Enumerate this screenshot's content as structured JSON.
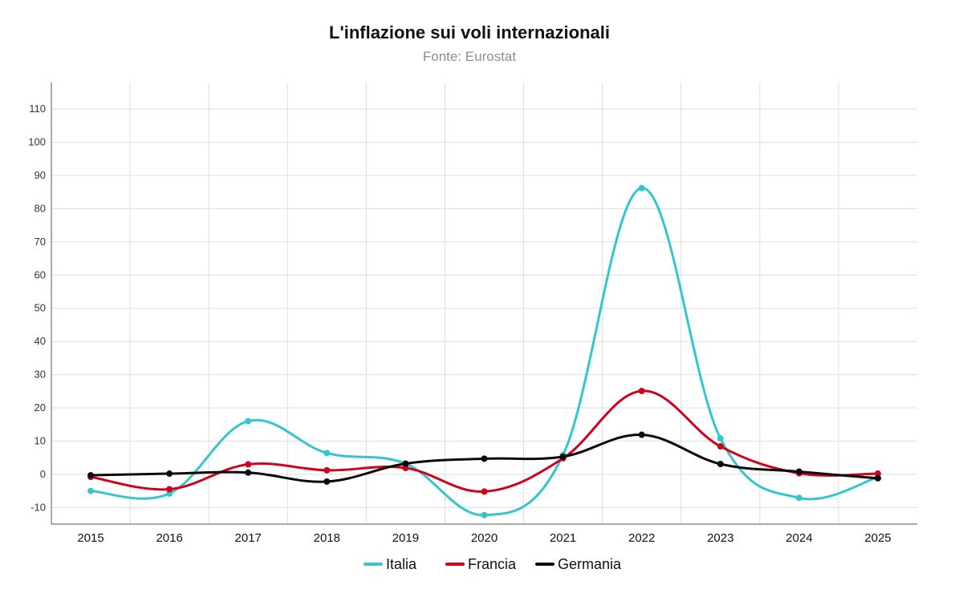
{
  "chart_data": {
    "type": "line",
    "title": "L'inflazione sui voli internazionali",
    "subtitle": "Fonte: Eurostat",
    "xlabel": "",
    "ylabel": "",
    "categories": [
      "2015",
      "2016",
      "2017",
      "2018",
      "2019",
      "2020",
      "2021",
      "2022",
      "2023",
      "2024",
      "2025"
    ],
    "ylim": [
      -15,
      118
    ],
    "yticks": [
      -10,
      0,
      10,
      20,
      30,
      40,
      50,
      60,
      70,
      80,
      90,
      100,
      110
    ],
    "grid": true,
    "legend_position": "bottom",
    "series": [
      {
        "name": "Italia",
        "color": "#35c6cd",
        "values": [
          -5,
          -5.8,
          16,
          6.4,
          3.2,
          -12.3,
          5.8,
          86.2,
          10.8,
          -7.1,
          -0.9
        ]
      },
      {
        "name": "Francia",
        "color": "#d0021b",
        "values": [
          -0.8,
          -4.5,
          3,
          1.2,
          1.9,
          -5.2,
          4.8,
          25.1,
          8.4,
          0.3,
          0.2
        ]
      },
      {
        "name": "Germania",
        "color": "#0b0b0b",
        "values": [
          -0.3,
          0.2,
          0.5,
          -2.2,
          3.2,
          4.7,
          5.3,
          11.9,
          3.1,
          0.8,
          -1.2
        ]
      }
    ]
  }
}
